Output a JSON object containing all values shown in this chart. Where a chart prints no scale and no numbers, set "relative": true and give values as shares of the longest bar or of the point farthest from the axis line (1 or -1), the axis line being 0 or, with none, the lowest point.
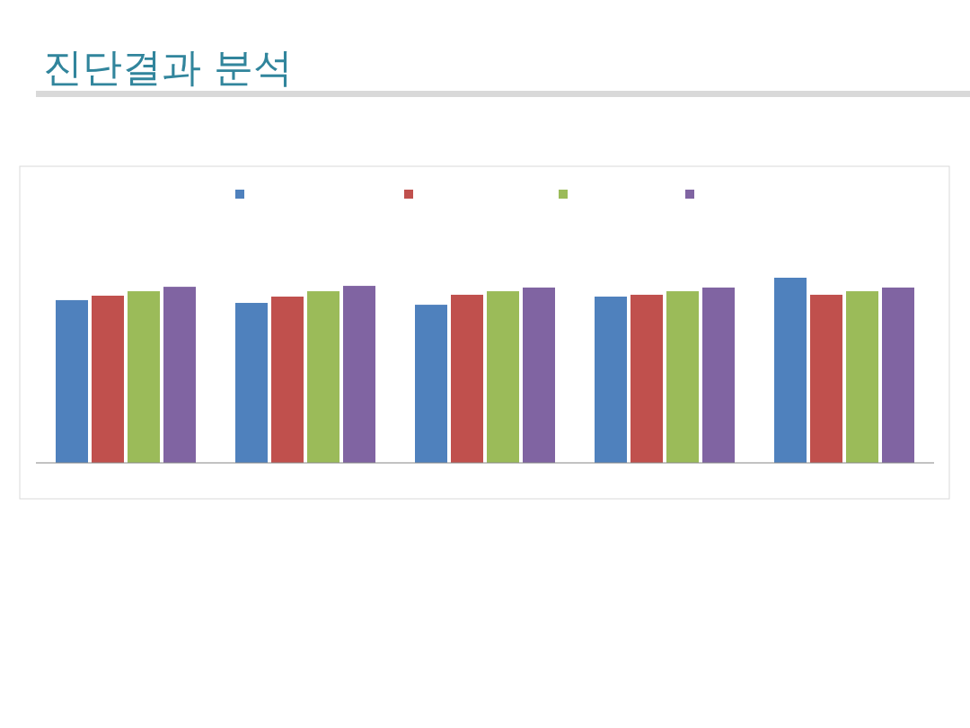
{
  "chart_data": {
    "type": "bar",
    "title": "진단결과 분석",
    "relative": true,
    "categories": [
      null,
      null,
      null,
      null,
      null
    ],
    "series": [
      {
        "color": "#4f81bd",
        "values": [
          0.879,
          0.864,
          0.854,
          0.898,
          1
        ]
      },
      {
        "color": "#c0504d",
        "values": [
          0.903,
          0.898,
          0.908,
          0.908,
          0.908
        ]
      },
      {
        "color": "#9bbb59",
        "values": [
          0.927,
          0.927,
          0.927,
          0.927,
          0.927
        ]
      },
      {
        "color": "#8064a2",
        "values": [
          0.951,
          0.956,
          0.947,
          0.947,
          0.947
        ]
      }
    ]
  }
}
